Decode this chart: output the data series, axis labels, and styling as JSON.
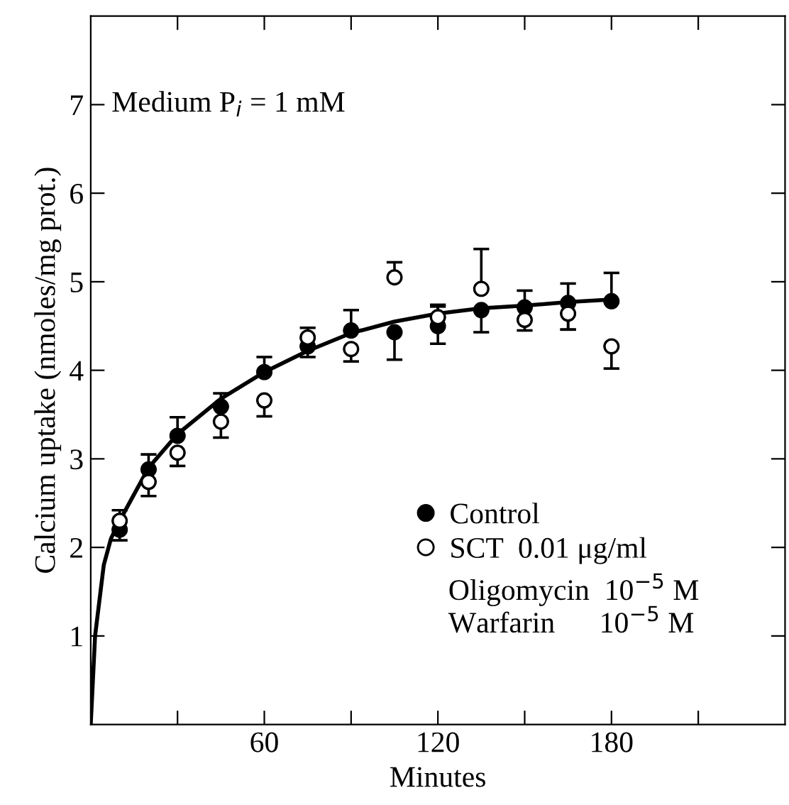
{
  "chart_data": {
    "type": "scatter",
    "xlabel": "Minutes",
    "ylabel": "Calcium uptake (nmoles/mg prot.)",
    "xlim": [
      0,
      240
    ],
    "ylim": [
      0,
      8
    ],
    "xticks": [
      {
        "value": 30,
        "label": null
      },
      60,
      {
        "value": 90,
        "label": null
      },
      120,
      {
        "value": 150,
        "label": null
      },
      180,
      {
        "value": 210,
        "label": null
      }
    ],
    "yticks": [
      1,
      2,
      3,
      4,
      5,
      6,
      7
    ],
    "grid": false,
    "legend": "center right",
    "series": [
      {
        "name": "Control",
        "marker": "circle",
        "color": "#000000",
        "x": [
          10,
          20,
          30,
          45,
          60,
          75,
          90,
          105,
          120,
          135,
          150,
          165,
          180
        ],
        "values": [
          2.2,
          2.88,
          3.26,
          3.59,
          3.98,
          4.27,
          4.45,
          4.43,
          4.5,
          4.68,
          4.71,
          4.76,
          4.78
        ],
        "errors": [
          [
            2.08,
            2.2
          ],
          [
            2.88,
            3.05
          ],
          [
            3.26,
            3.47
          ],
          [
            3.59,
            3.74
          ],
          [
            3.98,
            4.15
          ],
          [
            4.15,
            4.27
          ],
          [
            4.45,
            4.68
          ],
          [
            4.12,
            4.43
          ],
          [
            4.3,
            4.72
          ],
          [
            4.43,
            4.68
          ],
          [
            4.71,
            4.9
          ],
          [
            4.46,
            4.98
          ],
          [
            4.78,
            5.1
          ]
        ]
      },
      {
        "name": "SCT  0.01 μg/ml",
        "marker": "circle",
        "color": "#ffffff",
        "x": [
          10,
          20,
          30,
          45,
          60,
          75,
          90,
          105,
          120,
          135,
          150,
          165,
          180
        ],
        "values": [
          2.3,
          2.74,
          3.07,
          3.42,
          3.66,
          4.37,
          4.24,
          5.05,
          4.6,
          4.92,
          4.57,
          4.64,
          4.27
        ],
        "errors": [
          [
            2.3,
            2.42
          ],
          [
            2.58,
            2.74
          ],
          [
            2.92,
            3.07
          ],
          [
            3.24,
            3.42
          ],
          [
            3.48,
            3.66
          ],
          [
            4.37,
            4.48
          ],
          [
            4.1,
            4.24
          ],
          [
            5.05,
            5.22
          ],
          [
            4.6,
            4.74
          ],
          [
            4.92,
            5.37
          ],
          [
            4.45,
            4.57
          ],
          [
            4.46,
            4.64
          ],
          [
            4.02,
            4.27
          ]
        ]
      },
      {
        "type": "line",
        "color": "#000000",
        "line_style": "solid",
        "x": [
          0,
          1.5,
          4.5,
          7,
          10,
          20,
          30,
          45,
          60,
          75,
          90,
          105,
          120,
          135,
          150,
          165,
          180
        ],
        "values": [
          0,
          1.0,
          1.8,
          2.1,
          2.3,
          2.9,
          3.28,
          3.68,
          3.98,
          4.22,
          4.42,
          4.55,
          4.64,
          4.7,
          4.73,
          4.77,
          4.8
        ]
      }
    ],
    "annotations": [
      "Medium P$_{i}$ = 1 mM",
      "Oligomycin  10$^{−5}$ M",
      "Warfarin      10$^{−5}$ M"
    ]
  }
}
